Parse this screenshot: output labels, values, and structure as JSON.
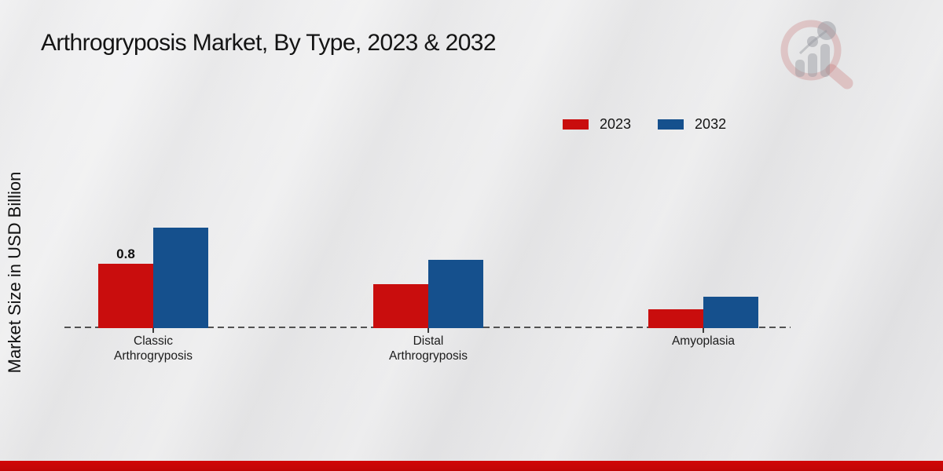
{
  "title": "Arthrogryposis Market, By Type, 2023 & 2032",
  "ylabel": "Market Size in USD Billion",
  "watermark_icon": "bar-chart-magnifier-logo",
  "colors": {
    "bar_2023": "#c90d0d",
    "bar_2032": "#15508d",
    "footer_band": "#c00505",
    "axis": "#3c3c3c",
    "background": "#eaeaeb"
  },
  "chart_data": {
    "type": "bar",
    "title": "Arthrogryposis Market, By Type, 2023 & 2032",
    "xlabel": "",
    "ylabel": "Market Size in USD Billion",
    "categories": [
      "Classic Arthrogryposis",
      "Distal Arthrogryposis",
      "Amyoplasia"
    ],
    "categories_lines": [
      [
        "Classic",
        "Arthrogryposis"
      ],
      [
        "Distal",
        "Arthrogryposis"
      ],
      [
        "Amyoplasia"
      ]
    ],
    "series": [
      {
        "name": "2023",
        "color": "#c90d0d",
        "values": [
          0.8,
          0.55,
          0.23
        ],
        "value_labels": [
          "0.8",
          "",
          ""
        ]
      },
      {
        "name": "2032",
        "color": "#15508d",
        "values": [
          1.25,
          0.85,
          0.39
        ],
        "value_labels": [
          "",
          "",
          ""
        ]
      }
    ],
    "ylim": [
      0,
      1.6
    ],
    "grid": false,
    "baseline_style": "dashed",
    "legend_position": "top-right",
    "units": "USD Billion"
  }
}
